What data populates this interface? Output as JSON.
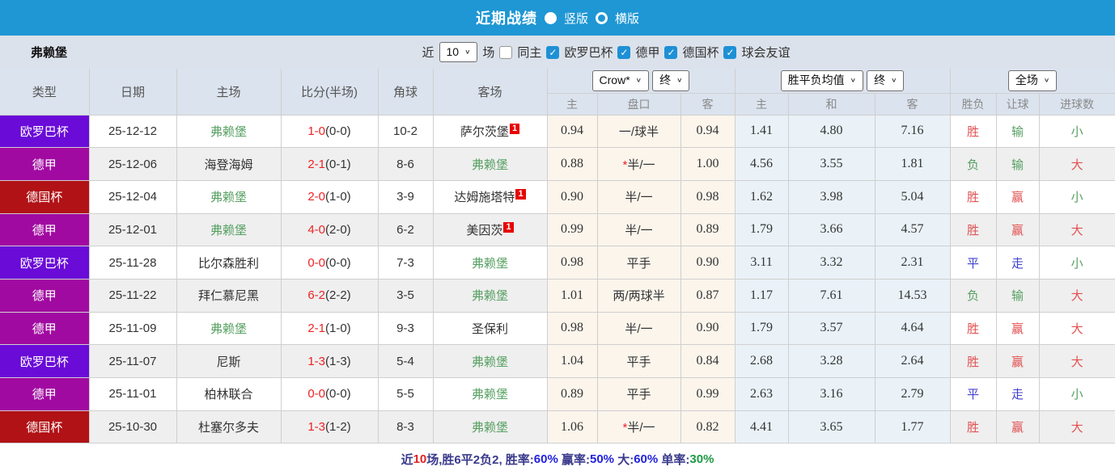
{
  "titlebar": {
    "title": "近期战绩",
    "layout_options": [
      {
        "label": "竖版",
        "selected": true
      },
      {
        "label": "横版",
        "selected": false
      }
    ]
  },
  "filterbar": {
    "team": "弗赖堡",
    "recent_label": "近",
    "recent_value": "10",
    "games_label": "场",
    "same_home_label": "同主",
    "same_home_checked": false,
    "competitions": [
      {
        "label": "欧罗巴杯",
        "checked": true
      },
      {
        "label": "德甲",
        "checked": true
      },
      {
        "label": "德国杯",
        "checked": true
      },
      {
        "label": "球会友谊",
        "checked": true
      }
    ]
  },
  "table": {
    "headers": {
      "type": "类型",
      "date": "日期",
      "home": "主场",
      "score": "比分(半场)",
      "corner": "角球",
      "away": "客场",
      "odds_source": "Crow*",
      "odds_state": "终",
      "avg_label": "胜平负均值",
      "avg_state": "终",
      "result_scope": "全场",
      "sub": [
        "主",
        "盘口",
        "客",
        "主",
        "和",
        "客",
        "胜负",
        "让球",
        "进球数"
      ]
    },
    "rows": [
      {
        "type": "欧罗巴杯",
        "type_key": "europa",
        "date": "25-12-12",
        "home": "弗赖堡",
        "home_focus": true,
        "home_badge": "",
        "score": "1-0",
        "half": "(0-0)",
        "corner": "10-2",
        "away": "萨尔茨堡",
        "away_focus": false,
        "away_badge": "1",
        "odds_home": "0.94",
        "handicap": "一/球半",
        "handicap_star": false,
        "odds_away": "0.94",
        "avg_home": "1.41",
        "avg_draw": "4.80",
        "avg_away": "7.16",
        "res_wdl": {
          "t": "胜",
          "c": "red"
        },
        "res_handicap": {
          "t": "输",
          "c": "green"
        },
        "res_goals": {
          "t": "小",
          "c": "green"
        }
      },
      {
        "type": "德甲",
        "type_key": "bundesliga",
        "date": "25-12-06",
        "home": "海登海姆",
        "home_focus": false,
        "home_badge": "",
        "score": "2-1",
        "half": "(0-1)",
        "corner": "8-6",
        "away": "弗赖堡",
        "away_focus": true,
        "away_badge": "",
        "odds_home": "0.88",
        "handicap": "半/一",
        "handicap_star": true,
        "odds_away": "1.00",
        "avg_home": "4.56",
        "avg_draw": "3.55",
        "avg_away": "1.81",
        "res_wdl": {
          "t": "负",
          "c": "green"
        },
        "res_handicap": {
          "t": "输",
          "c": "green"
        },
        "res_goals": {
          "t": "大",
          "c": "red"
        }
      },
      {
        "type": "德国杯",
        "type_key": "pokal",
        "date": "25-12-04",
        "home": "弗赖堡",
        "home_focus": true,
        "home_badge": "",
        "score": "2-0",
        "half": "(1-0)",
        "corner": "3-9",
        "away": "达姆施塔特",
        "away_focus": false,
        "away_badge": "1",
        "odds_home": "0.90",
        "handicap": "半/一",
        "handicap_star": false,
        "odds_away": "0.98",
        "avg_home": "1.62",
        "avg_draw": "3.98",
        "avg_away": "5.04",
        "res_wdl": {
          "t": "胜",
          "c": "red"
        },
        "res_handicap": {
          "t": "赢",
          "c": "red"
        },
        "res_goals": {
          "t": "小",
          "c": "green"
        }
      },
      {
        "type": "德甲",
        "type_key": "bundesliga",
        "date": "25-12-01",
        "home": "弗赖堡",
        "home_focus": true,
        "home_badge": "",
        "score": "4-0",
        "half": "(2-0)",
        "corner": "6-2",
        "away": "美因茨",
        "away_focus": false,
        "away_badge": "1",
        "odds_home": "0.99",
        "handicap": "半/一",
        "handicap_star": false,
        "odds_away": "0.89",
        "avg_home": "1.79",
        "avg_draw": "3.66",
        "avg_away": "4.57",
        "res_wdl": {
          "t": "胜",
          "c": "red"
        },
        "res_handicap": {
          "t": "赢",
          "c": "red"
        },
        "res_goals": {
          "t": "大",
          "c": "red"
        }
      },
      {
        "type": "欧罗巴杯",
        "type_key": "europa",
        "date": "25-11-28",
        "home": "比尔森胜利",
        "home_focus": false,
        "home_badge": "",
        "score": "0-0",
        "half": "(0-0)",
        "corner": "7-3",
        "away": "弗赖堡",
        "away_focus": true,
        "away_badge": "",
        "odds_home": "0.98",
        "handicap": "平手",
        "handicap_star": false,
        "odds_away": "0.90",
        "avg_home": "3.11",
        "avg_draw": "3.32",
        "avg_away": "2.31",
        "res_wdl": {
          "t": "平",
          "c": "blue"
        },
        "res_handicap": {
          "t": "走",
          "c": "blue"
        },
        "res_goals": {
          "t": "小",
          "c": "green"
        }
      },
      {
        "type": "德甲",
        "type_key": "bundesliga",
        "date": "25-11-22",
        "home": "拜仁慕尼黑",
        "home_focus": false,
        "home_badge": "",
        "score": "6-2",
        "half": "(2-2)",
        "corner": "3-5",
        "away": "弗赖堡",
        "away_focus": true,
        "away_badge": "",
        "odds_home": "1.01",
        "handicap": "两/两球半",
        "handicap_star": false,
        "odds_away": "0.87",
        "avg_home": "1.17",
        "avg_draw": "7.61",
        "avg_away": "14.53",
        "res_wdl": {
          "t": "负",
          "c": "green"
        },
        "res_handicap": {
          "t": "输",
          "c": "green"
        },
        "res_goals": {
          "t": "大",
          "c": "red"
        }
      },
      {
        "type": "德甲",
        "type_key": "bundesliga",
        "date": "25-11-09",
        "home": "弗赖堡",
        "home_focus": true,
        "home_badge": "",
        "score": "2-1",
        "half": "(1-0)",
        "corner": "9-3",
        "away": "圣保利",
        "away_focus": false,
        "away_badge": "",
        "odds_home": "0.98",
        "handicap": "半/一",
        "handicap_star": false,
        "odds_away": "0.90",
        "avg_home": "1.79",
        "avg_draw": "3.57",
        "avg_away": "4.64",
        "res_wdl": {
          "t": "胜",
          "c": "red"
        },
        "res_handicap": {
          "t": "赢",
          "c": "red"
        },
        "res_goals": {
          "t": "大",
          "c": "red"
        }
      },
      {
        "type": "欧罗巴杯",
        "type_key": "europa",
        "date": "25-11-07",
        "home": "尼斯",
        "home_focus": false,
        "home_badge": "",
        "score": "1-3",
        "half": "(1-3)",
        "corner": "5-4",
        "away": "弗赖堡",
        "away_focus": true,
        "away_badge": "",
        "odds_home": "1.04",
        "handicap": "平手",
        "handicap_star": false,
        "odds_away": "0.84",
        "avg_home": "2.68",
        "avg_draw": "3.28",
        "avg_away": "2.64",
        "res_wdl": {
          "t": "胜",
          "c": "red"
        },
        "res_handicap": {
          "t": "赢",
          "c": "red"
        },
        "res_goals": {
          "t": "大",
          "c": "red"
        }
      },
      {
        "type": "德甲",
        "type_key": "bundesliga",
        "date": "25-11-01",
        "home": "柏林联合",
        "home_focus": false,
        "home_badge": "",
        "score": "0-0",
        "half": "(0-0)",
        "corner": "5-5",
        "away": "弗赖堡",
        "away_focus": true,
        "away_badge": "",
        "odds_home": "0.89",
        "handicap": "平手",
        "handicap_star": false,
        "odds_away": "0.99",
        "avg_home": "2.63",
        "avg_draw": "3.16",
        "avg_away": "2.79",
        "res_wdl": {
          "t": "平",
          "c": "blue"
        },
        "res_handicap": {
          "t": "走",
          "c": "blue"
        },
        "res_goals": {
          "t": "小",
          "c": "green"
        }
      },
      {
        "type": "德国杯",
        "type_key": "pokal",
        "date": "25-10-30",
        "home": "杜塞尔多夫",
        "home_focus": false,
        "home_badge": "",
        "score": "1-3",
        "half": "(1-2)",
        "corner": "8-3",
        "away": "弗赖堡",
        "away_focus": true,
        "away_badge": "",
        "odds_home": "1.06",
        "handicap": "半/一",
        "handicap_star": true,
        "odds_away": "0.82",
        "avg_home": "4.41",
        "avg_draw": "3.65",
        "avg_away": "1.77",
        "res_wdl": {
          "t": "胜",
          "c": "red"
        },
        "res_handicap": {
          "t": "赢",
          "c": "red"
        },
        "res_goals": {
          "t": "大",
          "c": "red"
        }
      }
    ]
  },
  "footer": {
    "segments": [
      {
        "text": "近",
        "color": "navy"
      },
      {
        "text": "10",
        "color": "red"
      },
      {
        "text": "场,胜6平2负2, ",
        "color": "navy"
      },
      {
        "text": "胜率:",
        "color": "navy"
      },
      {
        "text": "60%",
        "color": "blue"
      },
      {
        "text": " 赢率:",
        "color": "navy"
      },
      {
        "text": "50%",
        "color": "blue"
      },
      {
        "text": " 大:",
        "color": "navy"
      },
      {
        "text": "60%",
        "color": "blue"
      },
      {
        "text": " 单率:",
        "color": "navy"
      },
      {
        "text": "30%",
        "color": "green"
      }
    ]
  }
}
